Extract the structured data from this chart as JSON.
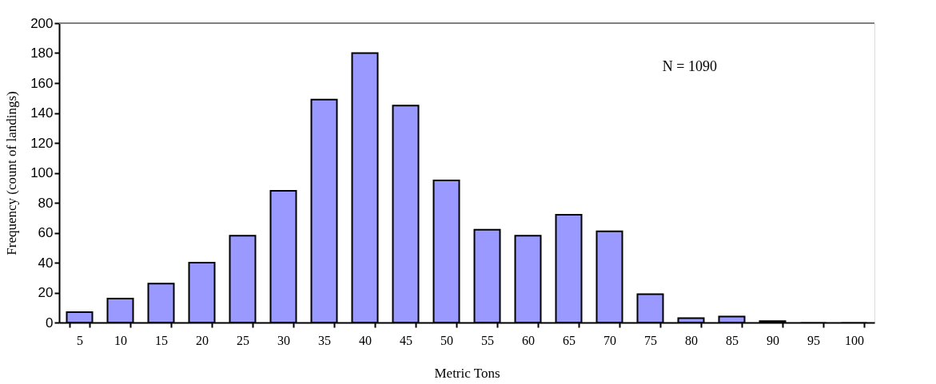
{
  "chart_data": {
    "type": "bar",
    "xlabel": "Metric Tons",
    "ylabel": "Frequency (count of landings)",
    "categories": [
      "5",
      "10",
      "15",
      "20",
      "25",
      "30",
      "35",
      "40",
      "45",
      "50",
      "55",
      "60",
      "65",
      "70",
      "75",
      "80",
      "85",
      "90",
      "95",
      "100"
    ],
    "values": [
      7,
      16,
      26,
      40,
      58,
      88,
      149,
      180,
      145,
      95,
      62,
      58,
      72,
      61,
      19,
      3,
      4,
      1,
      0,
      0
    ],
    "color": "#9999ff",
    "ylim": [
      0,
      200
    ],
    "yticks": [
      0,
      20,
      40,
      60,
      80,
      100,
      120,
      140,
      160,
      180,
      200
    ],
    "grid": false,
    "annotations": [
      "N = 1090"
    ]
  }
}
